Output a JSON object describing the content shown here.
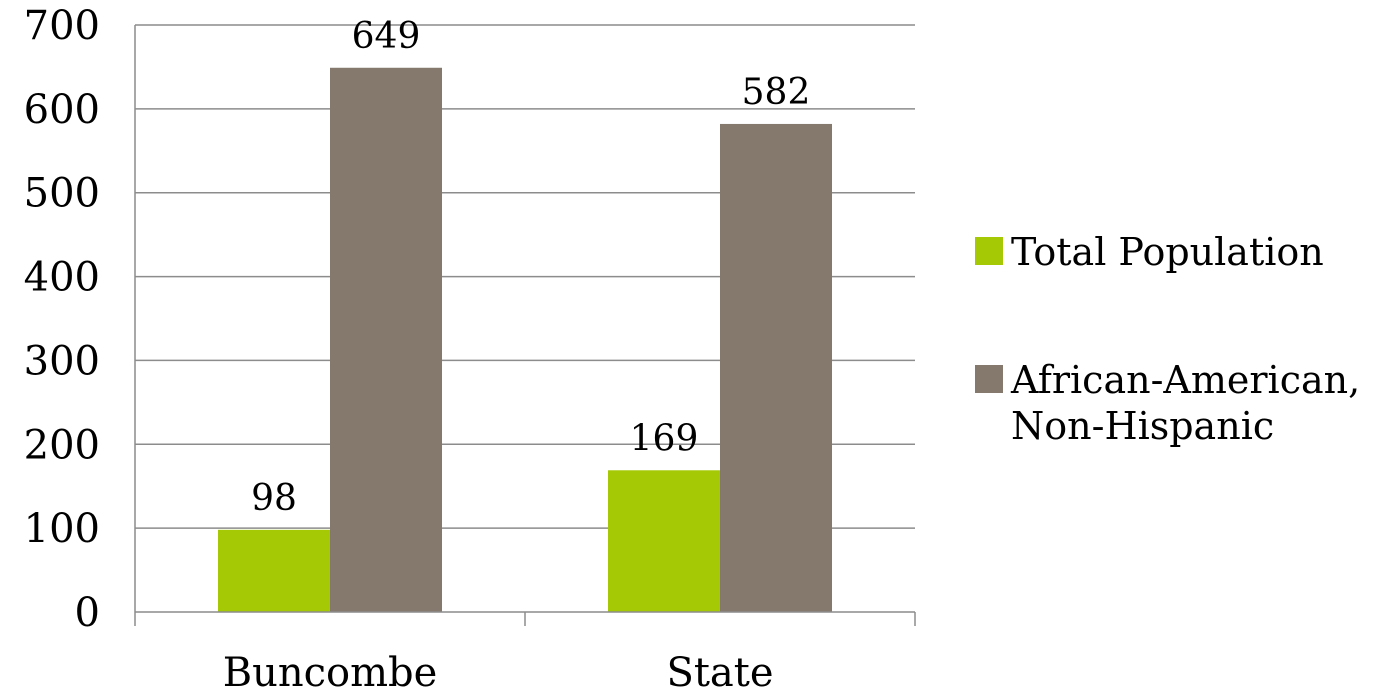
{
  "chart_data": {
    "type": "bar",
    "categories": [
      "Buncombe",
      "State"
    ],
    "series": [
      {
        "name": "Total Population",
        "values": [
          98,
          169
        ],
        "color": "#a5c905"
      },
      {
        "name": "African-American, Non-Hispanic",
        "name_lines": [
          "African-American,",
          "Non-Hispanic"
        ],
        "values": [
          649,
          582
        ],
        "color": "#85796d"
      }
    ],
    "title": "",
    "xlabel": "",
    "ylabel": "",
    "ylim": [
      0,
      700
    ],
    "yticks": [
      0,
      100,
      200,
      300,
      400,
      500,
      600,
      700
    ],
    "grid": true,
    "legend": "right",
    "data_labels": true
  }
}
